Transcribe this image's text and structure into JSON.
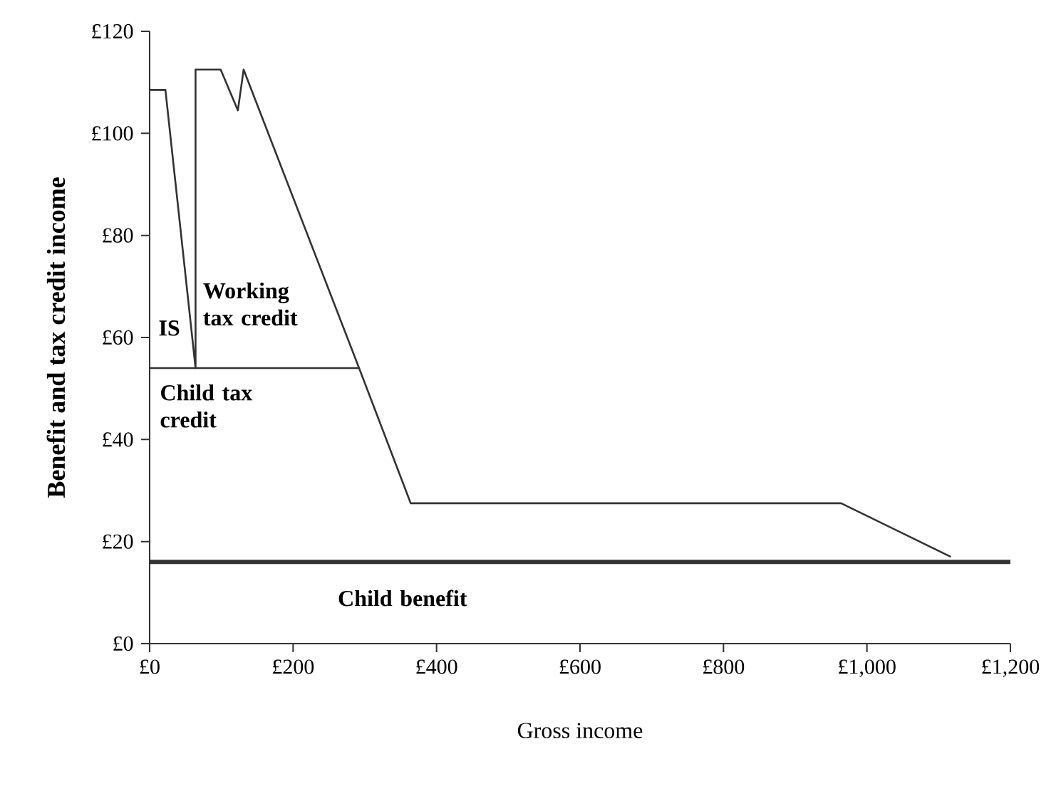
{
  "chart_data": {
    "type": "line",
    "xlabel": "Gross income",
    "ylabel": "Benefit and tax credit income",
    "series": [
      {
        "color": "#333333",
        "x": [
          0,
          22,
          64,
          64,
          99,
          123,
          131,
          292,
          364,
          964,
          1117
        ],
        "values": [
          108.5,
          108.5,
          54,
          112.5,
          112.5,
          104.5,
          112.5,
          54,
          27.5,
          27.5,
          17
        ]
      },
      {
        "color": "#333333",
        "x": [
          0,
          292
        ],
        "values": [
          54,
          54
        ]
      },
      {
        "color": "#333333",
        "x": [
          0,
          1200
        ],
        "values": [
          16,
          16
        ]
      }
    ],
    "xlim": [
      0,
      1200
    ],
    "ylim": [
      0,
      120
    ],
    "xticks": [
      {
        "value": 0,
        "label": "£0"
      },
      {
        "value": 200,
        "label": "£200"
      },
      {
        "value": 400,
        "label": "£400"
      },
      {
        "value": 600,
        "label": "£600"
      },
      {
        "value": 800,
        "label": "£800"
      },
      {
        "value": 1000,
        "label": "£1,000"
      },
      {
        "value": 1200,
        "label": "£1,200"
      }
    ],
    "yticks": [
      {
        "value": 0,
        "label": "£0"
      },
      {
        "value": 20,
        "label": "£20"
      },
      {
        "value": 40,
        "label": "£40"
      },
      {
        "value": 60,
        "label": "£60"
      },
      {
        "value": 80,
        "label": "£80"
      },
      {
        "value": 100,
        "label": "£100"
      },
      {
        "value": 120,
        "label": "£120"
      }
    ],
    "annotations": [
      "IS",
      "Working tax credit",
      "Child tax credit",
      "Child benefit"
    ],
    "grid": false,
    "marker": "none",
    "line_style": "solid"
  }
}
